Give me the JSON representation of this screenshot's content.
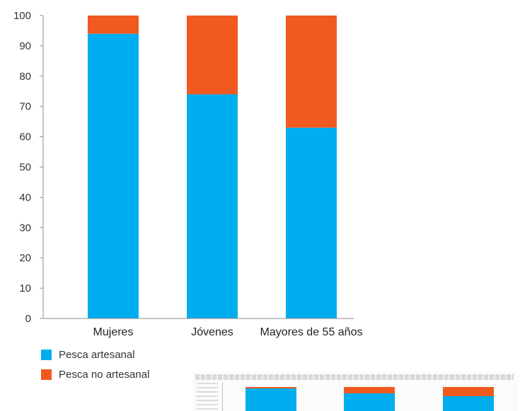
{
  "chart_data": {
    "type": "bar",
    "stacked": true,
    "categories": [
      "Mujeres",
      "Jóvenes",
      "Mayores de 55 años"
    ],
    "series": [
      {
        "name": "Pesca artesanal",
        "values": [
          94,
          74,
          63
        ],
        "color": "#00aeef"
      },
      {
        "name": "Pesca no artesanal",
        "values": [
          6,
          26,
          37
        ],
        "color": "#f15a1f"
      }
    ],
    "yticks": [
      "0",
      "10",
      "20",
      "30",
      "40",
      "50",
      "60",
      "70",
      "80",
      "90",
      "100"
    ],
    "ylim": [
      0,
      100
    ],
    "title": "",
    "xlabel": "",
    "ylabel": "",
    "grid": false,
    "legend_position": "bottom-left"
  }
}
